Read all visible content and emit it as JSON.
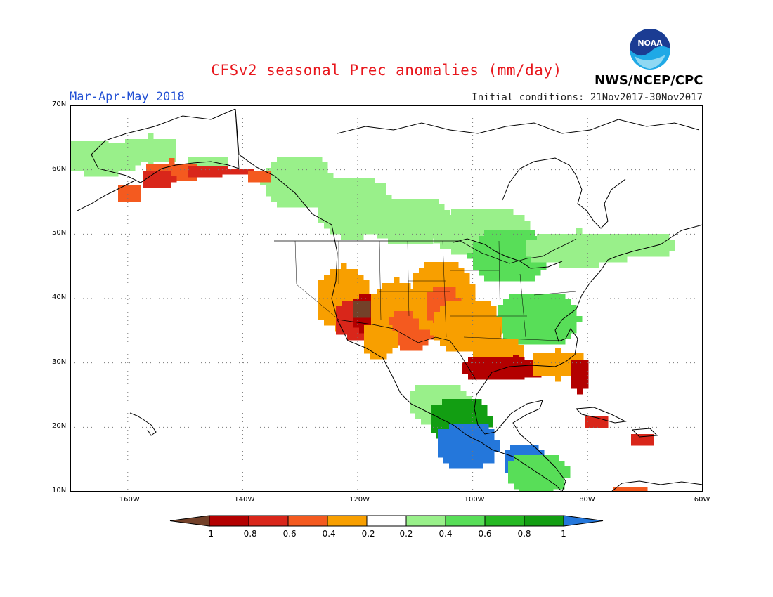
{
  "header": {
    "title": "CFSv2 seasonal Prec anomalies (mm/day)",
    "period": "Mar-Apr-May 2018",
    "initial_conditions": "Initial conditions: 21Nov2017-30Nov2017",
    "agency": "NWS/NCEP/CPC",
    "logo_text": "NOAA"
  },
  "map": {
    "lon_range": [
      -170,
      -60
    ],
    "lat_range": [
      10,
      70
    ],
    "lat_ticks": [
      "10N",
      "20N",
      "30N",
      "40N",
      "50N",
      "60N",
      "70N"
    ],
    "lon_ticks": [
      "160W",
      "140W",
      "120W",
      "100W",
      "80W",
      "60W"
    ],
    "grid": "dotted",
    "land_outline_color": "#000000"
  },
  "colorbar": {
    "labels": [
      "-1",
      "-0.8",
      "-0.6",
      "-0.4",
      "-0.2",
      "0.2",
      "0.4",
      "0.6",
      "0.8",
      "1"
    ],
    "colors": [
      "#734129",
      "#b30000",
      "#d9261a",
      "#f45a1f",
      "#f89f00",
      "#ffffff",
      "#99f08a",
      "#58de58",
      "#25b822",
      "#129e12",
      "#2477db"
    ]
  }
}
